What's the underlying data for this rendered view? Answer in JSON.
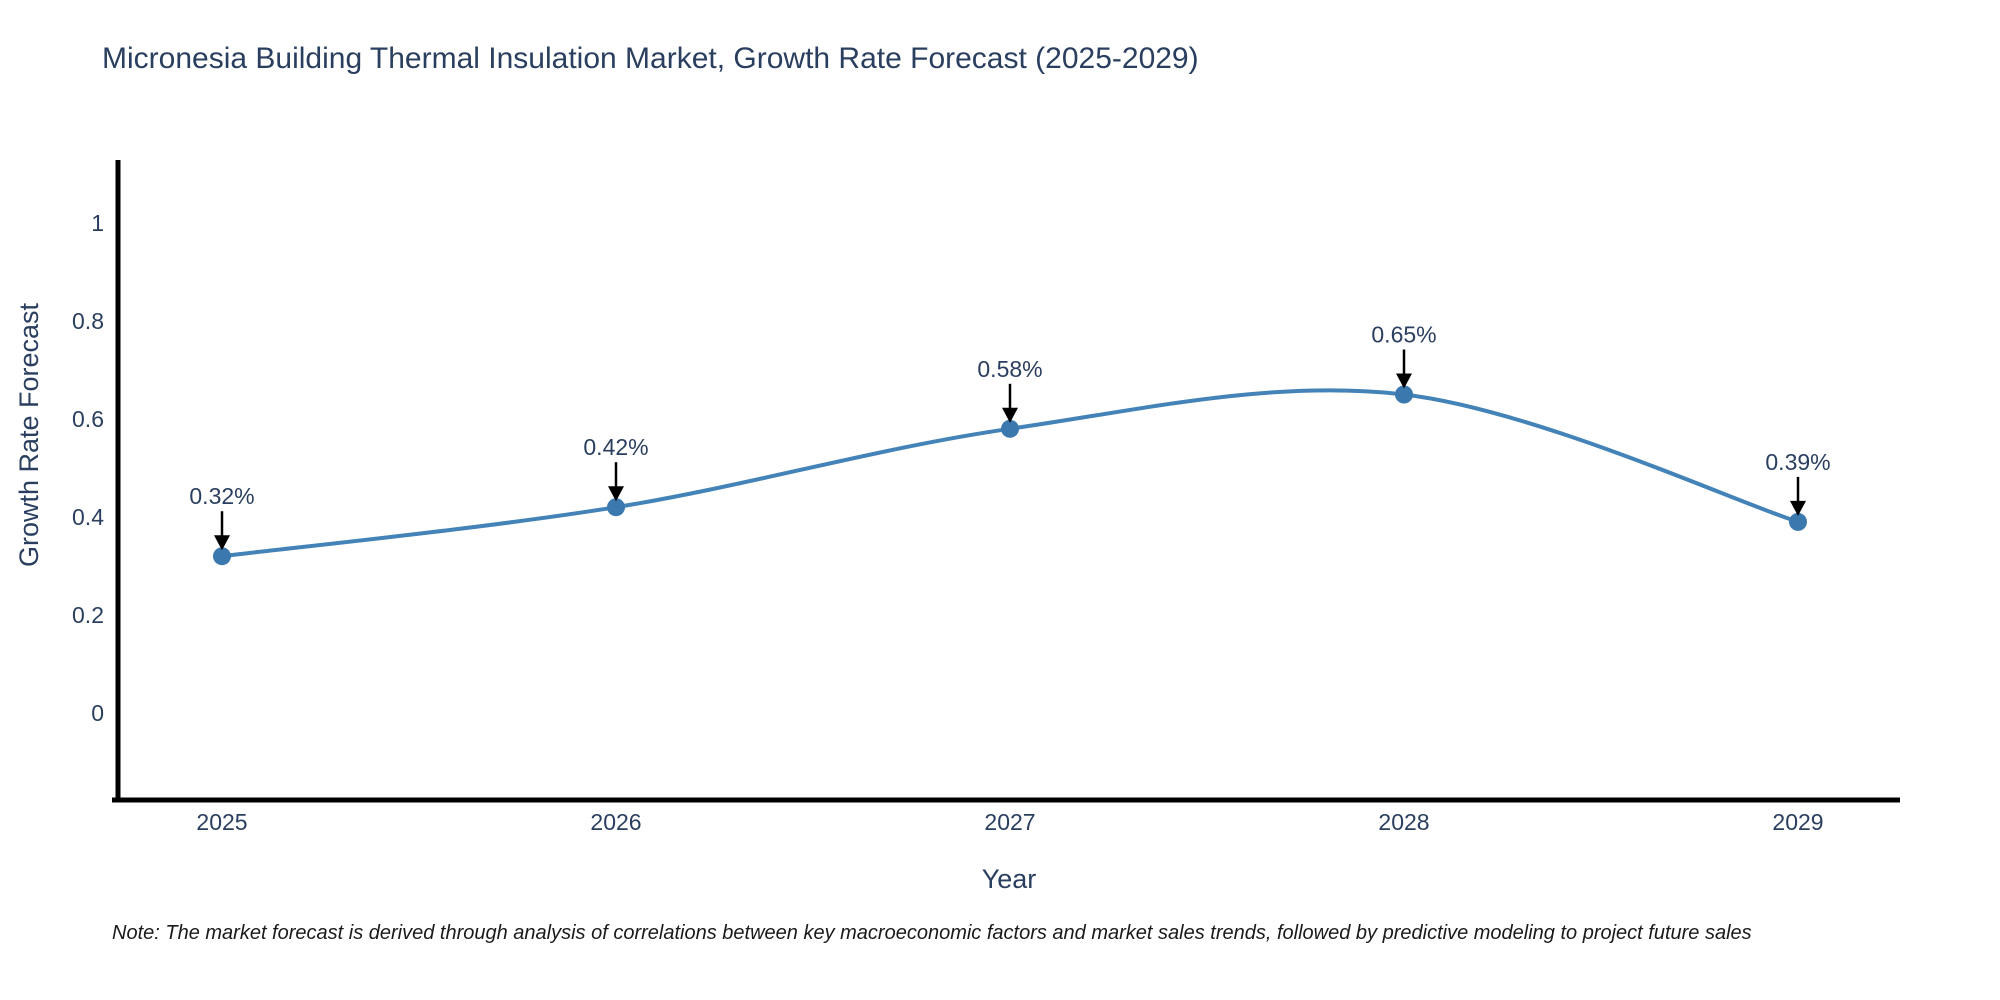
{
  "note": "Note: The market forecast is derived through analysis of correlations between key macroeconomic factors and market sales trends, followed by predictive modeling to project future sales",
  "chart_data": {
    "type": "line",
    "title": "Micronesia Building Thermal Insulation Market, Growth Rate Forecast (2025-2029)",
    "xlabel": "Year",
    "ylabel": "Growth Rate Forecast",
    "x": [
      2025,
      2026,
      2027,
      2028,
      2029
    ],
    "values": [
      0.32,
      0.42,
      0.58,
      0.65,
      0.39
    ],
    "point_labels": [
      "0.32%",
      "0.42%",
      "0.58%",
      "0.65%",
      "0.39%"
    ],
    "yticks": [
      0,
      0.2,
      0.4,
      0.6,
      0.8,
      1
    ],
    "ytick_labels": [
      "0",
      "0.2",
      "0.4",
      "0.6",
      "0.8",
      "1"
    ],
    "xtick_labels": [
      "2025",
      "2026",
      "2027",
      "2028",
      "2029"
    ],
    "xlim": [
      2024.73,
      2029.26
    ],
    "ylim": [
      -0.18,
      1.13
    ],
    "line_shape": "spline",
    "grid": false,
    "legend": "none",
    "colors": {
      "line": "#4383b8",
      "marker": "#3a78ae",
      "text": "#2a3f5f",
      "axis": "#000000",
      "annotation_arrow": "#000000",
      "background": "#ffffff"
    }
  }
}
